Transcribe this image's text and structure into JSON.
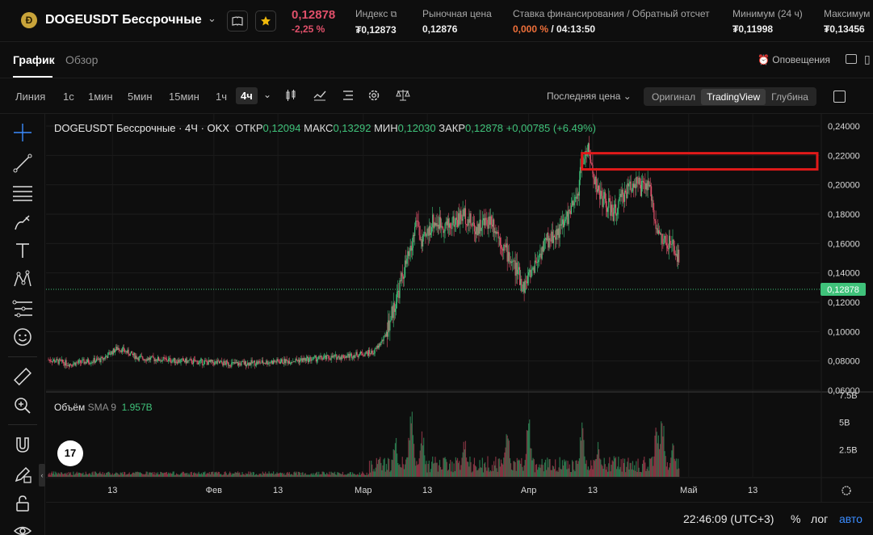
{
  "header": {
    "coin_icon": "dogecoin-icon",
    "pair": "DOGEUSDT Бессрочные",
    "price": "0,12878",
    "change": "-2,25 %",
    "stats": [
      {
        "label": "Индекс",
        "value": "₮0,12873",
        "icon": "external-link-icon"
      },
      {
        "label": "Рыночная цена",
        "value": "0,12876"
      },
      {
        "label": "Ставка финансирования / Обратный отсчет",
        "value_neg": "0,000 %",
        "value_rest": "/ 04:13:50"
      },
      {
        "label": "Минимум (24 ч)",
        "value": "₮0,11998"
      },
      {
        "label": "Максимум",
        "value": "₮0,13456"
      }
    ],
    "colors": {
      "down": "#e0506a",
      "up": "#3fc27a",
      "accent": "#3b8cff",
      "highlight_box": "#e01a1a"
    }
  },
  "tabs": [
    {
      "label": "График"
    },
    {
      "label": "Обзор"
    }
  ],
  "alerts_label": "Оповещения",
  "toolbar": {
    "timeframes": [
      "Линия",
      "1с",
      "1мин",
      "5мин",
      "15мин",
      "1ч",
      "4ч"
    ],
    "active_timeframe": "4ч",
    "price_type": "Последняя цена",
    "views": [
      "Оригинал",
      "TradingView",
      "Глубина"
    ],
    "active_view": "TradingView"
  },
  "legend": {
    "title": "DOGEUSDT Бессрочные · 4Ч · OKX",
    "open_label": "ОТКР",
    "open": "0,12094",
    "high_label": "МАКС",
    "high": "0,13292",
    "low_label": "МИН",
    "low": "0,12030",
    "close_label": "ЗАКР",
    "close": "0,12878",
    "change": "+0,00785 (+6.49%)"
  },
  "volume_legend": {
    "label": "Объём",
    "indicator": "SMA 9",
    "value": "1.957B"
  },
  "chart_data": {
    "type": "candlestick",
    "price_axis_ticks": [
      "0,24000",
      "0,22000",
      "0,20000",
      "0,18000",
      "0,16000",
      "0,14000",
      "0,12000",
      "0,10000",
      "0,08000",
      "0,06000"
    ],
    "price_range": [
      0.06,
      0.24
    ],
    "current_price": "0,12878",
    "current_price_value": 0.12878,
    "volume_axis_ticks": [
      "7.5B",
      "5B",
      "2.5B"
    ],
    "volume_range": [
      0,
      7.5
    ],
    "time_axis_ticks": [
      "13",
      "Фев",
      "13",
      "Мар",
      "13",
      "Апр",
      "13",
      "Май",
      "13"
    ],
    "time_axis_days": [
      12,
      31,
      43,
      59,
      71,
      90,
      102,
      120,
      132
    ],
    "day_range": [
      0,
      145
    ],
    "last_day": 118.3,
    "price_path": [
      [
        0,
        0.081
      ],
      [
        4,
        0.078
      ],
      [
        10,
        0.081
      ],
      [
        13,
        0.089
      ],
      [
        17,
        0.082
      ],
      [
        25,
        0.08
      ],
      [
        35,
        0.078
      ],
      [
        45,
        0.08
      ],
      [
        55,
        0.083
      ],
      [
        61,
        0.086
      ],
      [
        63,
        0.096
      ],
      [
        65,
        0.12
      ],
      [
        67,
        0.146
      ],
      [
        68,
        0.155
      ],
      [
        69,
        0.178
      ],
      [
        70,
        0.158
      ],
      [
        72,
        0.175
      ],
      [
        75,
        0.172
      ],
      [
        78,
        0.18
      ],
      [
        80,
        0.17
      ],
      [
        83,
        0.177
      ],
      [
        85,
        0.16
      ],
      [
        88,
        0.14
      ],
      [
        89,
        0.13
      ],
      [
        91,
        0.145
      ],
      [
        93,
        0.16
      ],
      [
        96,
        0.17
      ],
      [
        99,
        0.19
      ],
      [
        100,
        0.215
      ],
      [
        101,
        0.225
      ],
      [
        102,
        0.21
      ],
      [
        103,
        0.195
      ],
      [
        104,
        0.19
      ],
      [
        106,
        0.18
      ],
      [
        108,
        0.195
      ],
      [
        110,
        0.203
      ],
      [
        111,
        0.197
      ],
      [
        112,
        0.2
      ],
      [
        113,
        0.193
      ],
      [
        114,
        0.17
      ],
      [
        115,
        0.162
      ],
      [
        117,
        0.158
      ],
      [
        118,
        0.15
      ],
      [
        119,
        0.148
      ],
      [
        121,
        0.16
      ],
      [
        124,
        0.163
      ],
      [
        126,
        0.158
      ],
      [
        128,
        0.15
      ],
      [
        130,
        0.148
      ],
      [
        132,
        0.138
      ],
      [
        134,
        0.128
      ],
      [
        135,
        0.1288
      ]
    ],
    "volume_spikes": [
      [
        65,
        4.2
      ],
      [
        68,
        7.3
      ],
      [
        70,
        5.0
      ],
      [
        78,
        3.8
      ],
      [
        86,
        4.8
      ],
      [
        90,
        5.9
      ],
      [
        100,
        5.3
      ],
      [
        103,
        3.6
      ],
      [
        114,
        5.4
      ],
      [
        115,
        6.6
      ],
      [
        117,
        3.2
      ]
    ],
    "highlight_box": {
      "x_from_day": 100,
      "x_to_day": 145.5,
      "y_from": 0.2105,
      "y_to": 0.2215
    }
  },
  "bottom": {
    "time": "22:46:09 (UTC+3)",
    "percent": "%",
    "log": "лог",
    "auto": "авто"
  },
  "sidebar_icons": [
    "crosshair-icon",
    "trend-line-icon",
    "horizontal-lines-icon",
    "brush-icon",
    "text-icon",
    "pattern-icon",
    "fibonacci-icon",
    "emoji-icon",
    "ruler-icon",
    "zoom-in-icon",
    "magnet-icon",
    "lock-drawing-icon",
    "lock-icon",
    "eye-icon"
  ]
}
